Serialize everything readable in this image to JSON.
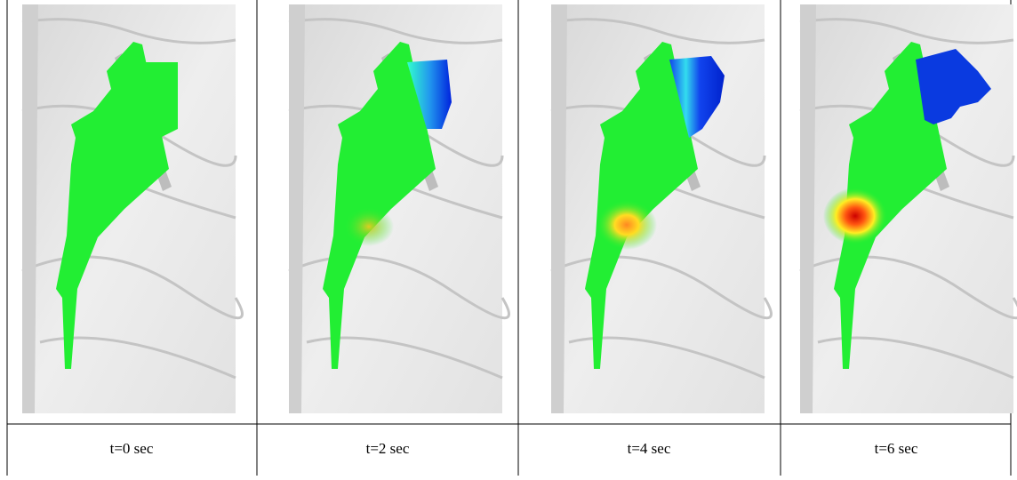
{
  "table": {
    "captions": [
      "t=0 sec",
      "t=2 sec",
      "t=4 sec",
      "t=6 sec"
    ]
  }
}
